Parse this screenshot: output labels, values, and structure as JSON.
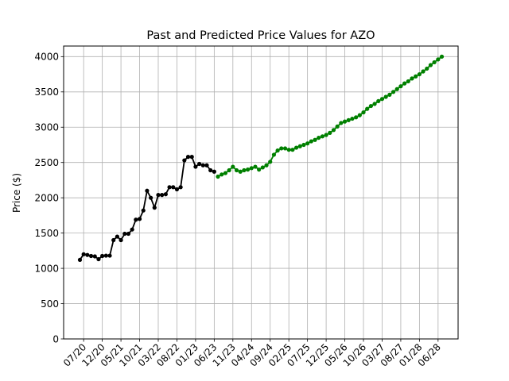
{
  "chart_data": {
    "type": "line",
    "title": "Past and Predicted Price Values for AZO",
    "xlabel": "",
    "ylabel": "Price ($)",
    "ylim": [
      0,
      4150
    ],
    "yticks": [
      0,
      500,
      1000,
      1500,
      2000,
      2500,
      3000,
      3500,
      4000
    ],
    "grid": true,
    "x_tick_labels": [
      "07/20",
      "12/20",
      "05/21",
      "10/21",
      "03/22",
      "08/22",
      "01/23",
      "06/23",
      "11/23",
      "04/24",
      "09/24",
      "02/25",
      "07/25",
      "12/25",
      "05/26",
      "10/26",
      "03/27",
      "08/27",
      "01/28",
      "06/28"
    ],
    "x_tick_step": 5,
    "x_tick_first_index": 1,
    "series": [
      {
        "role": "past",
        "color": "#000000",
        "start_index": 0,
        "values": [
          1120,
          1200,
          1190,
          1175,
          1170,
          1130,
          1175,
          1180,
          1180,
          1400,
          1450,
          1400,
          1490,
          1490,
          1550,
          1690,
          1700,
          1820,
          2100,
          2000,
          1860,
          2040,
          2040,
          2050,
          2150,
          2150,
          2120,
          2150,
          2530,
          2580,
          2580,
          2440,
          2480,
          2460,
          2460,
          2390,
          2370
        ]
      },
      {
        "role": "predicted",
        "color": "#008000",
        "start_index": 37,
        "values": [
          2300,
          2330,
          2350,
          2390,
          2440,
          2390,
          2370,
          2390,
          2400,
          2420,
          2440,
          2400,
          2430,
          2460,
          2510,
          2610,
          2670,
          2700,
          2700,
          2680,
          2680,
          2710,
          2730,
          2750,
          2770,
          2800,
          2820,
          2850,
          2870,
          2890,
          2920,
          2960,
          3010,
          3060,
          3080,
          3100,
          3120,
          3140,
          3170,
          3210,
          3260,
          3300,
          3330,
          3370,
          3400,
          3430,
          3460,
          3500,
          3540,
          3580,
          3620,
          3650,
          3690,
          3720,
          3750,
          3790,
          3830,
          3880,
          3920,
          3960,
          4000
        ]
      }
    ]
  }
}
